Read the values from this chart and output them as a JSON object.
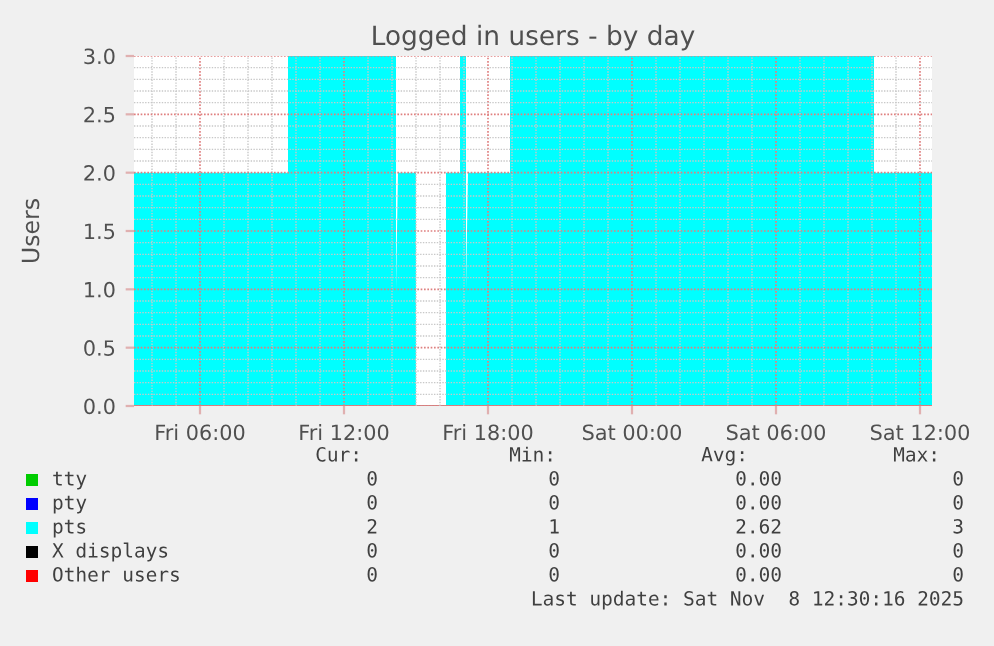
{
  "chart_data": {
    "type": "area",
    "title": "Logged in users - by day",
    "ylabel": "Users",
    "xlim": [
      "2025-11-07T03:15",
      "2025-11-08T12:30"
    ],
    "xticks": [
      {
        "value": "2025-11-07T06:00",
        "label": "Fri 06:00"
      },
      {
        "value": "2025-11-07T12:00",
        "label": "Fri 12:00"
      },
      {
        "value": "2025-11-07T18:00",
        "label": "Fri 18:00"
      },
      {
        "value": "2025-11-08T00:00",
        "label": "Sat 00:00"
      },
      {
        "value": "2025-11-08T06:00",
        "label": "Sat 06:00"
      },
      {
        "value": "2025-11-08T12:00",
        "label": "Sat 12:00"
      }
    ],
    "ylim": [
      0,
      3
    ],
    "yticks": [
      {
        "value": 0,
        "label": "0.0"
      },
      {
        "value": 0.5,
        "label": "0.5"
      },
      {
        "value": 1,
        "label": "1.0"
      },
      {
        "value": 1.5,
        "label": "1.5"
      },
      {
        "value": 2,
        "label": "2.0"
      },
      {
        "value": 2.5,
        "label": "2.5"
      },
      {
        "value": 3,
        "label": "3.0"
      }
    ],
    "grid": true,
    "legend": "bottom",
    "series": [
      {
        "name": "tty",
        "color": "#00cc00"
      },
      {
        "name": "pty",
        "color": "#0000ff"
      },
      {
        "name": "pts",
        "color": "#00ffff",
        "x": [
          "2025-11-07T03:15",
          "2025-11-07T09:40",
          "2025-11-07T09:40",
          "2025-11-07T14:10",
          "2025-11-07T14:10",
          "2025-11-07T14:15",
          "2025-11-07T15:00",
          "2025-11-07T15:30",
          "2025-11-07T16:15",
          "2025-11-07T16:50",
          "2025-11-07T16:50",
          "2025-11-07T17:05",
          "2025-11-07T17:05",
          "2025-11-07T17:10",
          "2025-11-07T18:55",
          "2025-11-07T18:55",
          "2025-11-08T10:05",
          "2025-11-08T10:05",
          "2025-11-08T12:30"
        ],
        "values": [
          2,
          2,
          3,
          3,
          1,
          2,
          2,
          null,
          2,
          2,
          3,
          3,
          1,
          2,
          2,
          3,
          3,
          2,
          2
        ]
      },
      {
        "name": "X displays",
        "color": "#000000"
      },
      {
        "name": "Other users",
        "color": "#ff0000"
      }
    ],
    "annotations": [
      "Cur:",
      "Min:",
      "Avg:",
      "Max:",
      "0",
      "0",
      "0.00",
      "0",
      "0",
      "0",
      "0.00",
      "0",
      "2",
      "1",
      "2.62",
      "3",
      "0",
      "0",
      "0.00",
      "0",
      "0",
      "0",
      "0.00",
      "0",
      "Last update: Sat Nov  8 12:30:16 2025"
    ]
  }
}
